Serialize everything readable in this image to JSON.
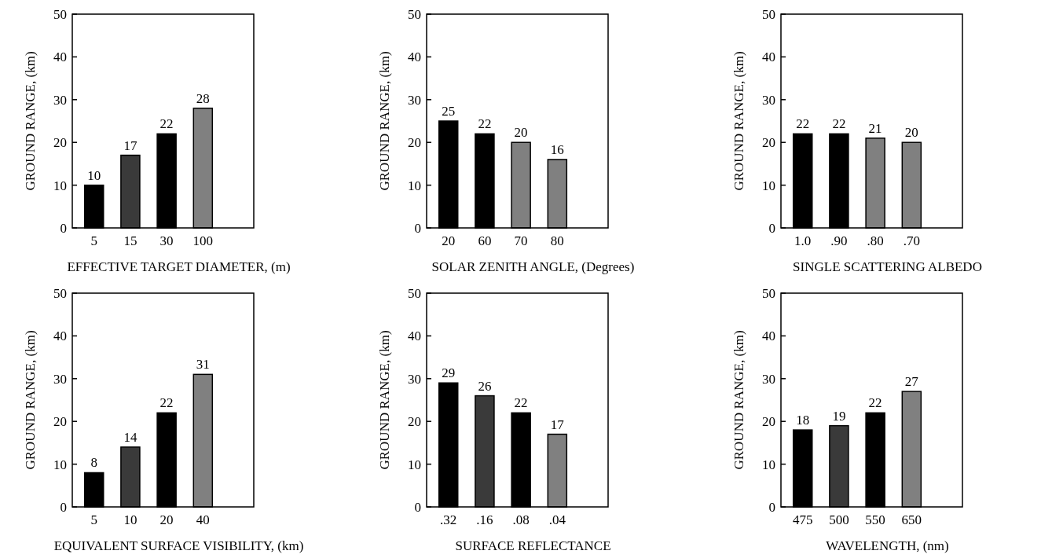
{
  "chart_data": [
    {
      "type": "bar",
      "xlabel": "EFFECTIVE TARGET DIAMETER, (m)",
      "ylabel": "GROUND RANGE, (km)",
      "categories": [
        "5",
        "15",
        "30",
        "100"
      ],
      "values": [
        10,
        17,
        22,
        28
      ],
      "colors": [
        "#000000",
        "#3a3a3a",
        "#000000",
        "#808080"
      ],
      "ylim": [
        0,
        50
      ],
      "yticks": [
        0,
        10,
        20,
        30,
        40,
        50
      ],
      "data_labels": true
    },
    {
      "type": "bar",
      "xlabel": "SOLAR ZENITH ANGLE, (Degrees)",
      "ylabel": "GROUND RANGE, (km)",
      "categories": [
        "20",
        "60",
        "70",
        "80"
      ],
      "values": [
        25,
        22,
        20,
        16
      ],
      "colors": [
        "#000000",
        "#000000",
        "#808080",
        "#808080"
      ],
      "ylim": [
        0,
        50
      ],
      "yticks": [
        0,
        10,
        20,
        30,
        40,
        50
      ],
      "data_labels": true
    },
    {
      "type": "bar",
      "xlabel": "SINGLE SCATTERING ALBEDO",
      "ylabel": "GROUND RANGE, (km)",
      "categories": [
        "1.0",
        ".90",
        ".80",
        ".70"
      ],
      "values": [
        22,
        22,
        21,
        20
      ],
      "colors": [
        "#000000",
        "#000000",
        "#808080",
        "#808080"
      ],
      "ylim": [
        0,
        50
      ],
      "yticks": [
        0,
        10,
        20,
        30,
        40,
        50
      ],
      "data_labels": true
    },
    {
      "type": "bar",
      "xlabel": "EQUIVALENT SURFACE VISIBILITY, (km)",
      "ylabel": "GROUND RANGE, (km)",
      "categories": [
        "5",
        "10",
        "20",
        "40"
      ],
      "values": [
        8,
        14,
        22,
        31
      ],
      "colors": [
        "#000000",
        "#3a3a3a",
        "#000000",
        "#808080"
      ],
      "ylim": [
        0,
        50
      ],
      "yticks": [
        0,
        10,
        20,
        30,
        40,
        50
      ],
      "data_labels": true
    },
    {
      "type": "bar",
      "xlabel": "SURFACE REFLECTANCE",
      "ylabel": "GROUND RANGE, (km)",
      "categories": [
        ".32",
        ".16",
        ".08",
        ".04"
      ],
      "values": [
        29,
        26,
        22,
        17
      ],
      "colors": [
        "#000000",
        "#3a3a3a",
        "#000000",
        "#808080"
      ],
      "ylim": [
        0,
        50
      ],
      "yticks": [
        0,
        10,
        20,
        30,
        40,
        50
      ],
      "data_labels": true
    },
    {
      "type": "bar",
      "xlabel": "WAVELENGTH, (nm)",
      "ylabel": "GROUND RANGE, (km)",
      "categories": [
        "475",
        "500",
        "550",
        "650"
      ],
      "values": [
        18,
        19,
        22,
        27
      ],
      "colors": [
        "#000000",
        "#3a3a3a",
        "#000000",
        "#808080"
      ],
      "ylim": [
        0,
        50
      ],
      "yticks": [
        0,
        10,
        20,
        30,
        40,
        50
      ],
      "data_labels": true
    }
  ]
}
